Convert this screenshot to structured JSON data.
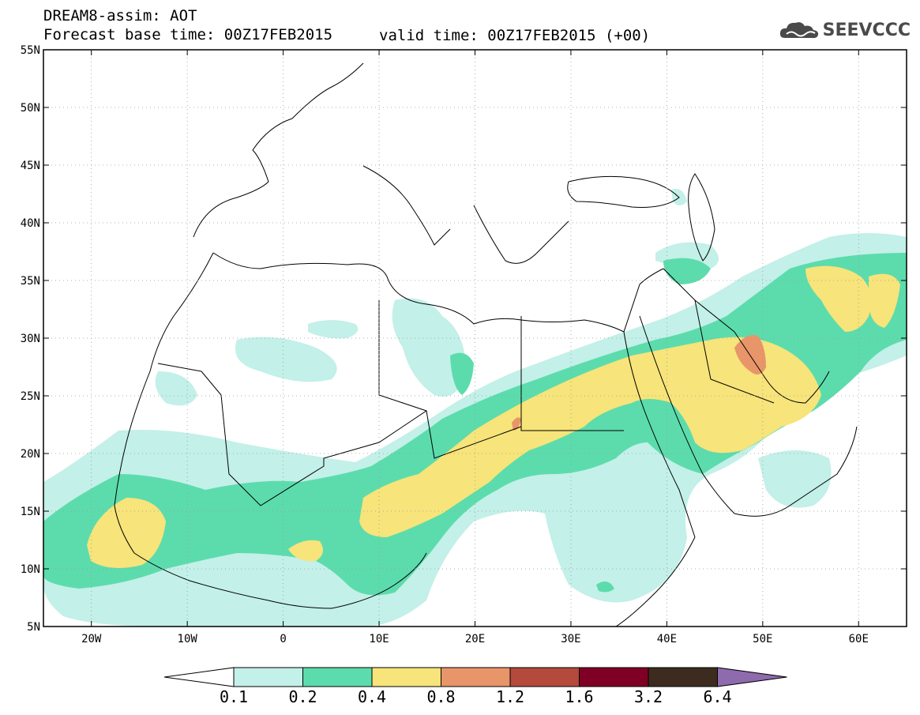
{
  "header": {
    "title": "DREAM8-assim: AOT",
    "forecast_base": "Forecast base time: 00Z17FEB2015",
    "valid_time": "valid time: 00Z17FEB2015 (+00)"
  },
  "logo": {
    "text": "SEEVCCC",
    "icon": "cloud-icon"
  },
  "map": {
    "lon_range": [
      -25,
      65
    ],
    "lat_range": [
      5,
      55
    ],
    "lat_labels": [
      "55N",
      "50N",
      "45N",
      "40N",
      "35N",
      "30N",
      "25N",
      "20N",
      "15N",
      "10N",
      "5N"
    ],
    "lon_labels": [
      "20W",
      "10W",
      "0",
      "10E",
      "20E",
      "30E",
      "40E",
      "50E",
      "60E"
    ]
  },
  "colorbar": {
    "labels": [
      "0.1",
      "0.2",
      "0.4",
      "0.8",
      "1.2",
      "1.6",
      "3.2",
      "6.4"
    ],
    "colors": [
      "#ffffff",
      "#c3f0e8",
      "#5cdcac",
      "#f7e47a",
      "#e8956a",
      "#b34a3c",
      "#800025",
      "#3d2b1f",
      "#8e6bac"
    ]
  }
}
